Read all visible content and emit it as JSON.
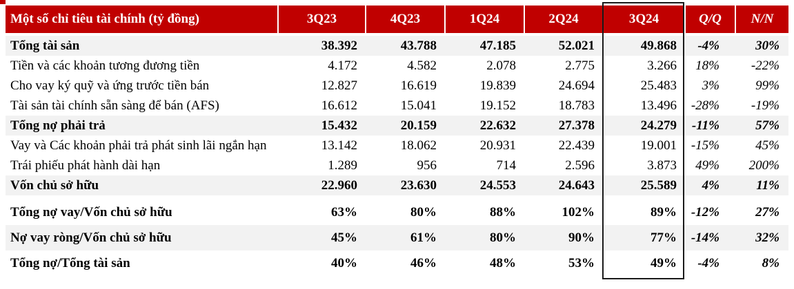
{
  "chart_data": {
    "type": "table",
    "title_column_header": "Một số chỉ tiêu tài chính (tỷ đồng)",
    "columns": [
      "3Q23",
      "4Q23",
      "1Q24",
      "2Q24",
      "3Q24",
      "Q/Q",
      "N/N"
    ],
    "highlighted_column": "3Q24",
    "rows": [
      {
        "label": "Tổng tài sản",
        "values": [
          "38.392",
          "43.788",
          "47.185",
          "52.021",
          "49.868",
          "-4%",
          "30%"
        ],
        "bold": true,
        "shaded": true,
        "tall": false,
        "gap_before": false
      },
      {
        "label": "Tiền và các khoản tương đương tiền",
        "values": [
          "4.172",
          "4.582",
          "2.078",
          "2.775",
          "3.266",
          "18%",
          "-22%"
        ],
        "bold": false,
        "shaded": false,
        "tall": false,
        "gap_before": false
      },
      {
        "label": "Cho vay ký quỹ và ứng trước tiền bán",
        "values": [
          "12.827",
          "16.619",
          "19.839",
          "24.694",
          "25.483",
          "3%",
          "99%"
        ],
        "bold": false,
        "shaded": false,
        "tall": false,
        "gap_before": false
      },
      {
        "label": "Tài sản tài chính sẵn sàng để bán (AFS)",
        "values": [
          "16.612",
          "15.041",
          "19.152",
          "18.783",
          "13.496",
          "-28%",
          "-19%"
        ],
        "bold": false,
        "shaded": false,
        "tall": false,
        "gap_before": false
      },
      {
        "label": "Tổng nợ phải trả",
        "values": [
          "15.432",
          "20.159",
          "22.632",
          "27.378",
          "24.279",
          "-11%",
          "57%"
        ],
        "bold": true,
        "shaded": true,
        "tall": false,
        "gap_before": false
      },
      {
        "label": "Vay và Các khoản phải trả phát sinh lãi ngắn hạn",
        "values": [
          "13.142",
          "18.062",
          "20.931",
          "22.439",
          "19.001",
          "-15%",
          "45%"
        ],
        "bold": false,
        "shaded": false,
        "tall": false,
        "gap_before": false
      },
      {
        "label": "Trái phiếu phát hành dài hạn",
        "values": [
          "1.289",
          "956",
          "714",
          "2.596",
          "3.873",
          "49%",
          "200%"
        ],
        "bold": false,
        "shaded": false,
        "tall": false,
        "gap_before": false
      },
      {
        "label": "Vốn chủ sở hữu",
        "values": [
          "22.960",
          "23.630",
          "24.553",
          "24.643",
          "25.589",
          "4%",
          "11%"
        ],
        "bold": true,
        "shaded": true,
        "tall": false,
        "gap_before": false
      },
      {
        "label": "Tổng nợ vay/Vốn chủ sở hữu",
        "values": [
          "63%",
          "80%",
          "88%",
          "102%",
          "89%",
          "-12%",
          "27%"
        ],
        "bold": true,
        "shaded": false,
        "tall": true,
        "gap_before": true
      },
      {
        "label": "Nợ vay ròng/Vốn chủ sở hữu",
        "values": [
          "45%",
          "61%",
          "80%",
          "90%",
          "77%",
          "-14%",
          "32%"
        ],
        "bold": true,
        "shaded": true,
        "tall": true,
        "gap_before": false
      },
      {
        "label": "Tổng nợ/Tổng tài sản",
        "values": [
          "40%",
          "46%",
          "48%",
          "53%",
          "49%",
          "-4%",
          "8%"
        ],
        "bold": true,
        "shaded": false,
        "tall": true,
        "gap_before": false
      }
    ]
  },
  "colors": {
    "header_background": "#C00000",
    "header_text": "#FFFFFF",
    "shaded_row": "#F2F2F2",
    "body_text": "#000000",
    "highlight_border": "#1A1A1A"
  }
}
